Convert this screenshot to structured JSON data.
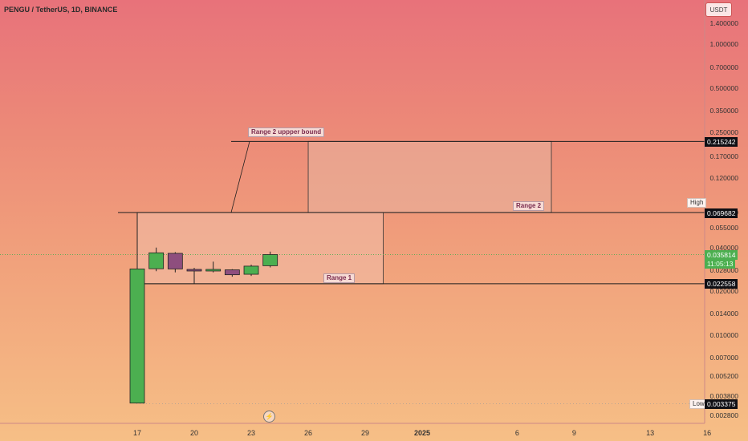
{
  "header": {
    "symbol_title": "PENGU / TetherUS, 1D, BINANCE",
    "currency": "USDT"
  },
  "price_axis": {
    "ticks": [
      "1.400000",
      "1.000000",
      "0.700000",
      "0.500000",
      "0.350000",
      "0.250000",
      "0.170000",
      "0.120000",
      "0.070000",
      "0.055000",
      "0.040000",
      "0.028000",
      "0.020000",
      "0.014000",
      "0.010000",
      "0.007000",
      "0.005200",
      "0.003800",
      "0.002800"
    ],
    "tick_values": [
      1.4,
      1.0,
      0.7,
      0.5,
      0.35,
      0.25,
      0.17,
      0.12,
      0.07,
      0.055,
      0.04,
      0.028,
      0.02,
      0.014,
      0.01,
      0.007,
      0.0052,
      0.0038,
      0.0028
    ],
    "tags": {
      "range2_top": "0.215242",
      "high": "0.069682",
      "last_price": "0.035814",
      "countdown": "11:05:13",
      "range1_bottom": "0.022558",
      "low": "0.003375"
    },
    "high_label": "High",
    "low_label": "Low"
  },
  "time_axis": {
    "ticks": [
      "17",
      "20",
      "23",
      "26",
      "29",
      "2025",
      "6",
      "9",
      "13",
      "16"
    ]
  },
  "drawings": {
    "range1_label": "Range 1",
    "range2_label": "Range 2",
    "range2_upper_label": "Range 2 uppper bound"
  },
  "colors": {
    "up": "#4caf50",
    "down": "#8e4e7e",
    "line": "#1f1f1f"
  },
  "chart_data": {
    "type": "candlestick",
    "symbol": "PENGU / TetherUS",
    "interval": "1D",
    "exchange": "BINANCE",
    "y_scale": "log",
    "x": [
      "17",
      "18",
      "19",
      "20",
      "21",
      "22",
      "23",
      "24"
    ],
    "candles": [
      {
        "open": 0.0034,
        "high": 0.0697,
        "low": 0.0034,
        "close": 0.0285
      },
      {
        "open": 0.0286,
        "high": 0.04,
        "low": 0.0275,
        "close": 0.0368
      },
      {
        "open": 0.0365,
        "high": 0.0372,
        "low": 0.027,
        "close": 0.0285
      },
      {
        "open": 0.0283,
        "high": 0.029,
        "low": 0.0226,
        "close": 0.0278
      },
      {
        "open": 0.0279,
        "high": 0.032,
        "low": 0.027,
        "close": 0.0283
      },
      {
        "open": 0.0281,
        "high": 0.0284,
        "low": 0.0252,
        "close": 0.026
      },
      {
        "open": 0.0262,
        "high": 0.0305,
        "low": 0.0255,
        "close": 0.0298
      },
      {
        "open": 0.03,
        "high": 0.0375,
        "low": 0.0292,
        "close": 0.0358
      }
    ],
    "levels": {
      "range2_top": 0.215242,
      "high": 0.069682,
      "last_price": 0.035814,
      "range1_bottom": 0.022558,
      "low": 0.003375
    }
  }
}
